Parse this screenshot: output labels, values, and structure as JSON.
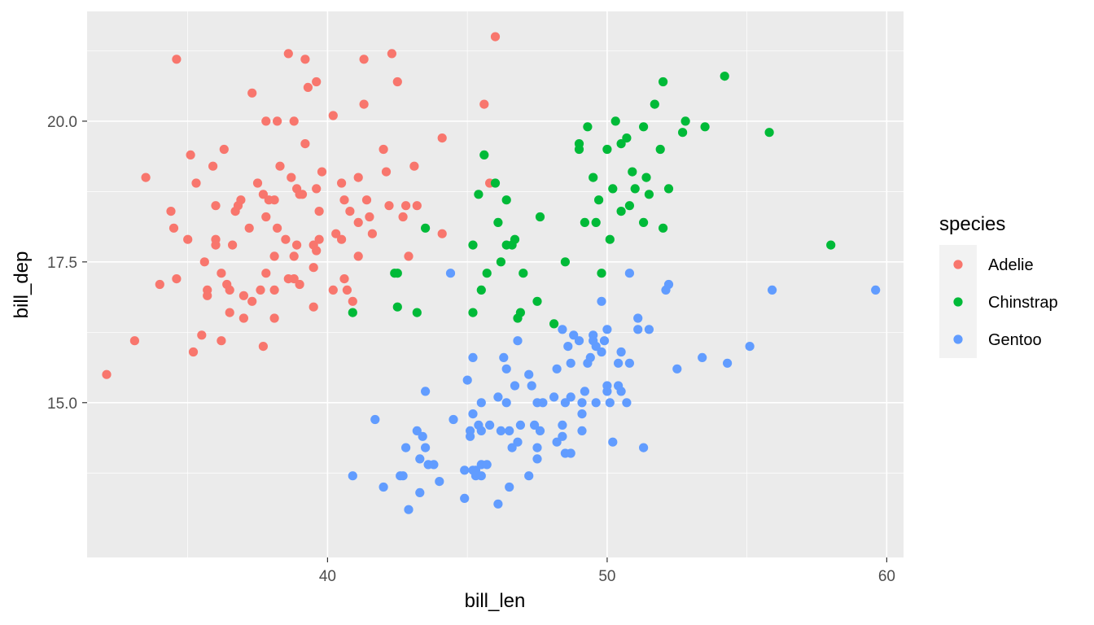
{
  "chart_data": {
    "type": "scatter",
    "xlabel": "bill_len",
    "ylabel": "bill_dep",
    "xlim": [
      31.4,
      60.6
    ],
    "ylim": [
      12.25,
      21.95
    ],
    "x_ticks": [
      40,
      50,
      60
    ],
    "x_tick_labels": [
      "40",
      "50",
      "60"
    ],
    "y_ticks": [
      15.0,
      17.5,
      20.0
    ],
    "y_tick_labels": [
      "15.0",
      "17.5",
      "20.0"
    ],
    "grid": true,
    "legend": {
      "title": "species",
      "placement": "right"
    },
    "series": [
      {
        "name": "Adelie",
        "color": "#F8766D",
        "points": [
          [
            32.1,
            15.5
          ],
          [
            33.1,
            16.1
          ],
          [
            33.5,
            19.0
          ],
          [
            34.0,
            17.1
          ],
          [
            34.4,
            18.4
          ],
          [
            34.5,
            18.1
          ],
          [
            34.6,
            21.1
          ],
          [
            34.6,
            17.2
          ],
          [
            35.0,
            17.9
          ],
          [
            35.1,
            19.4
          ],
          [
            35.2,
            15.9
          ],
          [
            35.3,
            18.9
          ],
          [
            35.5,
            16.2
          ],
          [
            35.6,
            17.5
          ],
          [
            35.7,
            17.0
          ],
          [
            35.7,
            16.9
          ],
          [
            35.9,
            19.2
          ],
          [
            36.0,
            17.8
          ],
          [
            36.0,
            17.9
          ],
          [
            36.0,
            18.5
          ],
          [
            36.2,
            17.3
          ],
          [
            36.2,
            16.1
          ],
          [
            36.3,
            19.5
          ],
          [
            36.4,
            17.1
          ],
          [
            36.5,
            16.6
          ],
          [
            36.5,
            17.0
          ],
          [
            36.6,
            17.8
          ],
          [
            36.7,
            18.4
          ],
          [
            36.8,
            18.5
          ],
          [
            36.9,
            18.6
          ],
          [
            37.0,
            16.9
          ],
          [
            37.0,
            16.5
          ],
          [
            37.2,
            18.1
          ],
          [
            37.3,
            16.8
          ],
          [
            37.3,
            20.5
          ],
          [
            37.5,
            18.9
          ],
          [
            37.6,
            17.0
          ],
          [
            37.7,
            18.7
          ],
          [
            37.7,
            16.0
          ],
          [
            37.8,
            18.3
          ],
          [
            37.8,
            20.0
          ],
          [
            37.8,
            17.3
          ],
          [
            37.9,
            18.6
          ],
          [
            38.1,
            17.6
          ],
          [
            38.1,
            18.6
          ],
          [
            38.1,
            17.0
          ],
          [
            38.1,
            16.5
          ],
          [
            38.2,
            18.1
          ],
          [
            38.2,
            20.0
          ],
          [
            38.3,
            19.2
          ],
          [
            38.5,
            17.9
          ],
          [
            38.6,
            21.2
          ],
          [
            38.6,
            17.2
          ],
          [
            38.7,
            19.0
          ],
          [
            38.8,
            20.0
          ],
          [
            38.8,
            17.2
          ],
          [
            38.8,
            17.6
          ],
          [
            38.9,
            17.8
          ],
          [
            38.9,
            18.8
          ],
          [
            39.0,
            18.7
          ],
          [
            39.0,
            17.1
          ],
          [
            39.1,
            18.7
          ],
          [
            39.2,
            19.6
          ],
          [
            39.2,
            21.1
          ],
          [
            39.3,
            20.6
          ],
          [
            39.5,
            16.7
          ],
          [
            39.5,
            17.8
          ],
          [
            39.5,
            17.4
          ],
          [
            39.6,
            18.8
          ],
          [
            39.6,
            20.7
          ],
          [
            39.6,
            17.7
          ],
          [
            39.7,
            18.4
          ],
          [
            39.7,
            17.9
          ],
          [
            39.8,
            19.1
          ],
          [
            40.2,
            20.1
          ],
          [
            40.2,
            17.0
          ],
          [
            40.3,
            18.0
          ],
          [
            40.5,
            18.9
          ],
          [
            40.5,
            17.9
          ],
          [
            40.6,
            18.6
          ],
          [
            40.6,
            17.2
          ],
          [
            40.7,
            17.0
          ],
          [
            40.8,
            18.4
          ],
          [
            40.9,
            16.8
          ],
          [
            41.1,
            19.0
          ],
          [
            41.1,
            17.6
          ],
          [
            41.1,
            18.2
          ],
          [
            41.3,
            21.1
          ],
          [
            41.3,
            20.3
          ],
          [
            41.4,
            18.6
          ],
          [
            41.5,
            18.3
          ],
          [
            41.6,
            18.0
          ],
          [
            42.0,
            19.5
          ],
          [
            42.1,
            19.1
          ],
          [
            42.2,
            18.5
          ],
          [
            42.3,
            21.2
          ],
          [
            42.5,
            20.7
          ],
          [
            42.7,
            18.3
          ],
          [
            42.8,
            18.5
          ],
          [
            42.9,
            17.6
          ],
          [
            43.1,
            19.2
          ],
          [
            43.2,
            18.5
          ],
          [
            44.1,
            18.0
          ],
          [
            44.1,
            19.7
          ],
          [
            45.6,
            20.3
          ],
          [
            45.8,
            18.9
          ],
          [
            46.0,
            21.5
          ]
        ]
      },
      {
        "name": "Chinstrap",
        "color": "#00BA38",
        "points": [
          [
            40.9,
            16.6
          ],
          [
            42.4,
            17.3
          ],
          [
            42.5,
            16.7
          ],
          [
            42.5,
            17.3
          ],
          [
            43.2,
            16.6
          ],
          [
            43.5,
            18.1
          ],
          [
            45.2,
            17.8
          ],
          [
            45.2,
            16.6
          ],
          [
            45.4,
            18.7
          ],
          [
            45.5,
            17.0
          ],
          [
            45.6,
            19.4
          ],
          [
            45.7,
            17.3
          ],
          [
            46.0,
            18.9
          ],
          [
            46.1,
            18.2
          ],
          [
            46.2,
            17.5
          ],
          [
            46.4,
            18.6
          ],
          [
            46.4,
            17.8
          ],
          [
            46.6,
            17.8
          ],
          [
            46.7,
            17.9
          ],
          [
            46.8,
            16.5
          ],
          [
            46.9,
            16.6
          ],
          [
            47.0,
            17.3
          ],
          [
            47.5,
            16.8
          ],
          [
            47.6,
            18.3
          ],
          [
            48.1,
            16.4
          ],
          [
            48.5,
            17.5
          ],
          [
            49.0,
            19.6
          ],
          [
            49.0,
            19.5
          ],
          [
            49.2,
            18.2
          ],
          [
            49.3,
            19.9
          ],
          [
            49.5,
            19.0
          ],
          [
            49.6,
            18.2
          ],
          [
            49.7,
            18.6
          ],
          [
            49.8,
            17.3
          ],
          [
            50.0,
            19.5
          ],
          [
            50.1,
            17.9
          ],
          [
            50.2,
            18.8
          ],
          [
            50.3,
            20.0
          ],
          [
            50.5,
            18.4
          ],
          [
            50.5,
            19.6
          ],
          [
            50.7,
            19.7
          ],
          [
            50.8,
            18.5
          ],
          [
            50.9,
            19.1
          ],
          [
            51.0,
            18.8
          ],
          [
            51.3,
            19.9
          ],
          [
            51.3,
            18.2
          ],
          [
            51.4,
            19.0
          ],
          [
            51.5,
            18.7
          ],
          [
            51.7,
            20.3
          ],
          [
            51.9,
            19.5
          ],
          [
            52.0,
            18.1
          ],
          [
            52.0,
            20.7
          ],
          [
            52.2,
            18.8
          ],
          [
            52.7,
            19.8
          ],
          [
            52.8,
            20.0
          ],
          [
            53.5,
            19.9
          ],
          [
            54.2,
            20.8
          ],
          [
            55.8,
            19.8
          ],
          [
            58.0,
            17.8
          ]
        ]
      },
      {
        "name": "Gentoo",
        "color": "#619CFF",
        "points": [
          [
            40.9,
            13.7
          ],
          [
            41.7,
            14.7
          ],
          [
            42.0,
            13.5
          ],
          [
            42.6,
            13.7
          ],
          [
            42.7,
            13.7
          ],
          [
            42.8,
            14.2
          ],
          [
            42.9,
            13.1
          ],
          [
            43.2,
            14.5
          ],
          [
            43.3,
            13.4
          ],
          [
            43.3,
            14.0
          ],
          [
            43.4,
            14.4
          ],
          [
            43.5,
            14.2
          ],
          [
            43.5,
            15.2
          ],
          [
            43.6,
            13.9
          ],
          [
            43.8,
            13.9
          ],
          [
            44.0,
            13.6
          ],
          [
            44.4,
            17.3
          ],
          [
            44.5,
            14.7
          ],
          [
            44.9,
            13.8
          ],
          [
            44.9,
            13.3
          ],
          [
            45.0,
            15.4
          ],
          [
            45.1,
            14.5
          ],
          [
            45.1,
            14.4
          ],
          [
            45.2,
            13.8
          ],
          [
            45.2,
            14.8
          ],
          [
            45.2,
            15.8
          ],
          [
            45.3,
            13.8
          ],
          [
            45.3,
            13.7
          ],
          [
            45.4,
            14.6
          ],
          [
            45.5,
            13.7
          ],
          [
            45.5,
            13.9
          ],
          [
            45.5,
            15.0
          ],
          [
            45.5,
            14.5
          ],
          [
            45.7,
            13.9
          ],
          [
            45.8,
            14.6
          ],
          [
            46.1,
            13.2
          ],
          [
            46.1,
            15.1
          ],
          [
            46.2,
            14.5
          ],
          [
            46.3,
            15.8
          ],
          [
            46.4,
            15.6
          ],
          [
            46.4,
            15.0
          ],
          [
            46.5,
            14.5
          ],
          [
            46.5,
            13.5
          ],
          [
            46.6,
            14.2
          ],
          [
            46.7,
            15.3
          ],
          [
            46.8,
            14.3
          ],
          [
            46.8,
            16.1
          ],
          [
            46.9,
            14.6
          ],
          [
            47.2,
            13.7
          ],
          [
            47.2,
            15.5
          ],
          [
            47.3,
            15.3
          ],
          [
            47.4,
            14.6
          ],
          [
            47.5,
            14.0
          ],
          [
            47.5,
            14.2
          ],
          [
            47.5,
            15.0
          ],
          [
            47.6,
            14.5
          ],
          [
            47.7,
            15.0
          ],
          [
            48.1,
            15.1
          ],
          [
            48.2,
            14.3
          ],
          [
            48.2,
            15.6
          ],
          [
            48.4,
            14.4
          ],
          [
            48.4,
            14.6
          ],
          [
            48.4,
            16.3
          ],
          [
            48.5,
            14.1
          ],
          [
            48.5,
            15.0
          ],
          [
            48.6,
            16.0
          ],
          [
            48.7,
            14.1
          ],
          [
            48.7,
            15.1
          ],
          [
            48.7,
            15.7
          ],
          [
            48.8,
            16.2
          ],
          [
            49.0,
            16.1
          ],
          [
            49.1,
            14.8
          ],
          [
            49.1,
            15.0
          ],
          [
            49.1,
            14.5
          ],
          [
            49.2,
            15.2
          ],
          [
            49.3,
            15.7
          ],
          [
            49.4,
            15.8
          ],
          [
            49.5,
            16.2
          ],
          [
            49.5,
            16.1
          ],
          [
            49.6,
            15.0
          ],
          [
            49.6,
            16.0
          ],
          [
            49.8,
            16.8
          ],
          [
            49.8,
            15.9
          ],
          [
            49.9,
            16.1
          ],
          [
            50.0,
            15.2
          ],
          [
            50.0,
            16.3
          ],
          [
            50.0,
            15.3
          ],
          [
            50.1,
            15.0
          ],
          [
            50.2,
            14.3
          ],
          [
            50.4,
            15.3
          ],
          [
            50.4,
            15.7
          ],
          [
            50.5,
            15.2
          ],
          [
            50.5,
            15.9
          ],
          [
            50.7,
            15.0
          ],
          [
            50.8,
            15.7
          ],
          [
            50.8,
            17.3
          ],
          [
            51.1,
            16.3
          ],
          [
            51.1,
            16.5
          ],
          [
            51.3,
            14.2
          ],
          [
            51.5,
            16.3
          ],
          [
            52.1,
            17.0
          ],
          [
            52.2,
            17.1
          ],
          [
            52.5,
            15.6
          ],
          [
            53.4,
            15.8
          ],
          [
            54.3,
            15.7
          ],
          [
            55.1,
            16.0
          ],
          [
            55.9,
            17.0
          ],
          [
            59.6,
            17.0
          ]
        ]
      }
    ]
  }
}
